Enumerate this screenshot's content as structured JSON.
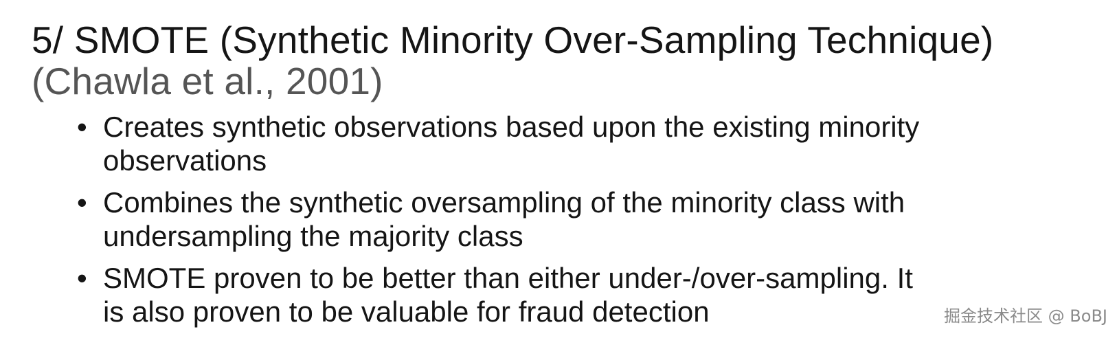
{
  "slide": {
    "title": "5/ SMOTE (Synthetic Minority Over-Sampling Technique)",
    "citation": "(Chawla et al., 2001)",
    "bullet_symbol": "•",
    "bullets": [
      {
        "line1": "Creates synthetic observations based upon the existing minority",
        "line2": "observations"
      },
      {
        "line1": "Combines the synthetic oversampling of the minority class with",
        "line2": "undersampling the majority class"
      },
      {
        "line1": "SMOTE proven to be better than either under-/over-sampling.  It",
        "line2": "is also proven to be valuable for fraud detection"
      }
    ]
  },
  "watermark": {
    "text": "掘金技术社区 @ BoBJ"
  }
}
